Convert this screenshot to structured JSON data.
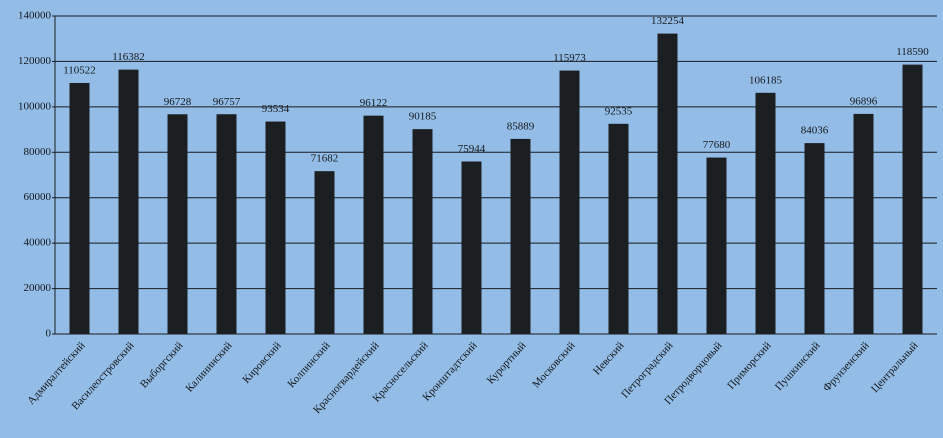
{
  "chart_data": {
    "type": "bar",
    "categories": [
      "Адмиралтейский",
      "Василеостровский",
      "Выборгский",
      "Калининский",
      "Кировский",
      "Колпинский",
      "Красногвардейский",
      "Красносельский",
      "Кронштадтский",
      "Курортный",
      "Московский",
      "Невский",
      "Петроградский",
      "Петродворцовый",
      "Приморский",
      "Пушкинский",
      "Фрунзенский",
      "Центральный"
    ],
    "values": [
      110522,
      116382,
      96728,
      96757,
      93534,
      71682,
      96122,
      90185,
      75944,
      85889,
      115973,
      92535,
      132254,
      77680,
      106185,
      84036,
      96896,
      118590
    ],
    "color": "#1c1f22",
    "ylim": [
      0,
      140000
    ],
    "yticks": [
      0,
      20000,
      40000,
      60000,
      80000,
      100000,
      120000,
      140000
    ],
    "grid": true,
    "data_labels": true
  }
}
